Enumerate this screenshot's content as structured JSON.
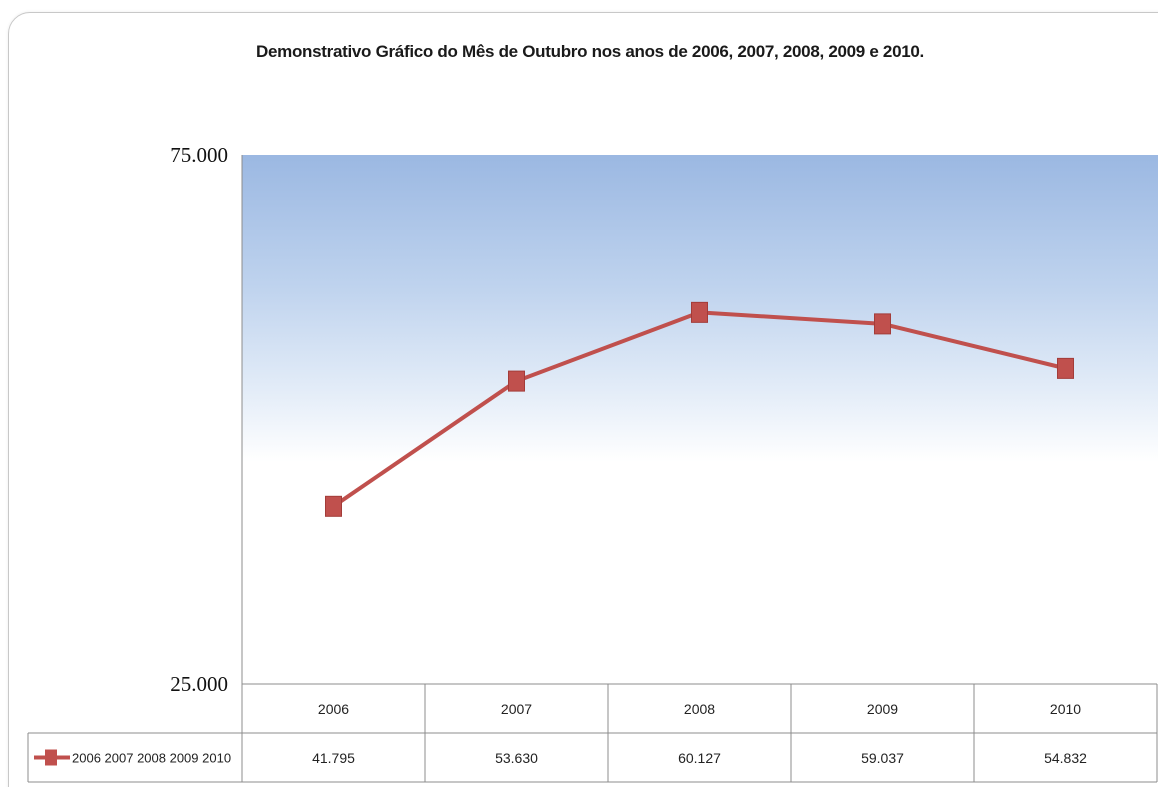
{
  "chart_data": {
    "type": "line",
    "title": "Demonstrativo Gráfico do Mês de Outubro nos anos de 2006, 2007, 2008, 2009 e 2010.",
    "categories": [
      "2006",
      "2007",
      "2008",
      "2009",
      "2010"
    ],
    "series": [
      {
        "name": "2006 2007 2008 2009 2010",
        "values": [
          41795,
          53630,
          60127,
          59037,
          54832
        ],
        "value_labels": [
          "41.795",
          "53.630",
          "60.127",
          "59.037",
          "54.832"
        ],
        "color": "#c0504d",
        "marker": "square"
      }
    ],
    "ylim": [
      25000,
      75000
    ],
    "ytick_labels": [
      "75.000",
      "25.000"
    ],
    "grid": false,
    "legend": "data-table-bottom-left",
    "xlabel": "",
    "ylabel": "",
    "plot_background": "gradient-blue-to-white"
  }
}
